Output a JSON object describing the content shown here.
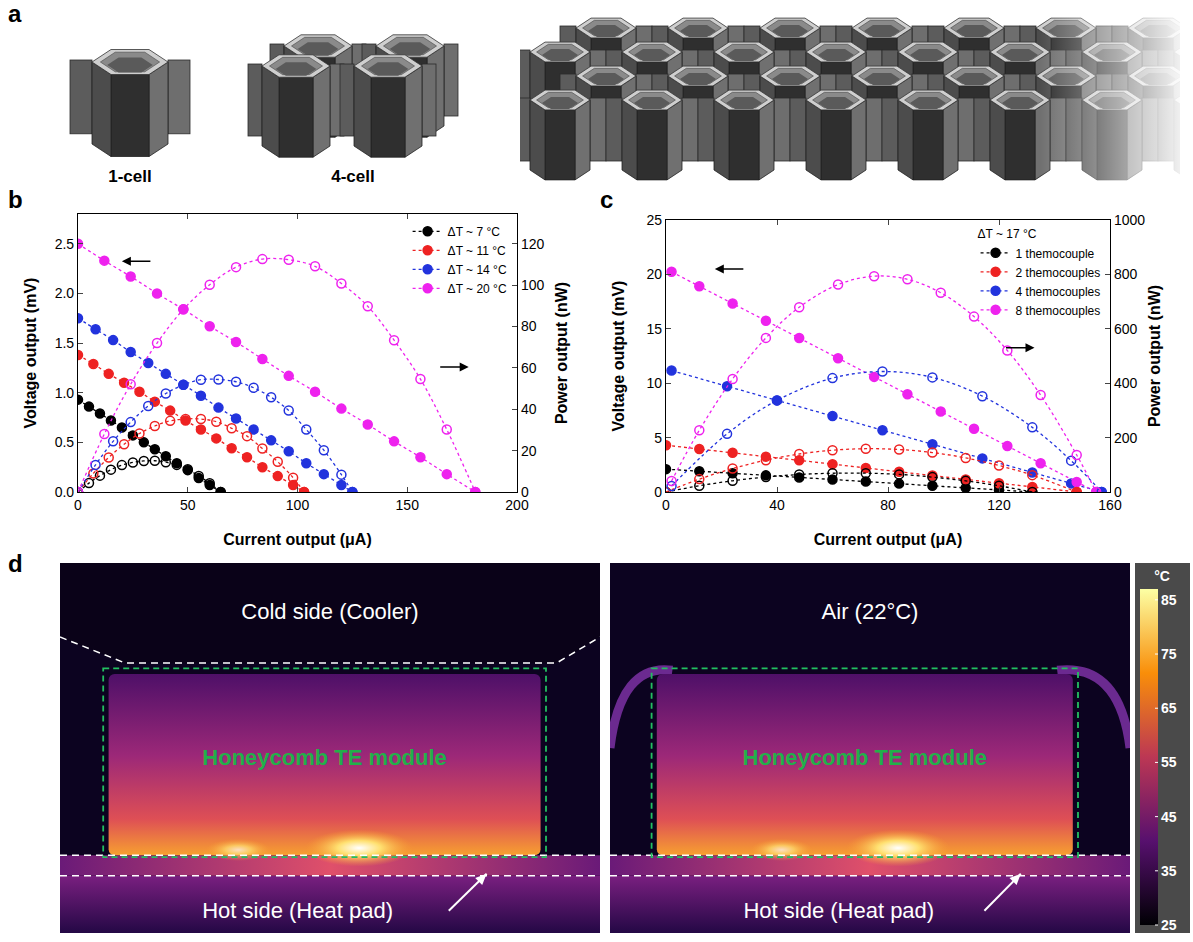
{
  "panel_a": {
    "letter": "a",
    "labels": [
      "1-cell",
      "4-cell"
    ]
  },
  "chart_data": [
    {
      "letter": "b",
      "type": "line",
      "x_label": "Current output (μA)",
      "y_label": "Voltage output (mV)",
      "y2_label": "Power output (nW)",
      "xlim": [
        0,
        200
      ],
      "xticks": [
        0,
        50,
        100,
        150,
        200
      ],
      "ylim": [
        0,
        2.8
      ],
      "yticks": [
        {
          "value": 0,
          "label": "0.0"
        },
        {
          "value": 0.5,
          "label": "0.5"
        },
        {
          "value": 1,
          "label": "1.0"
        },
        {
          "value": 1.5,
          "label": "1.5"
        },
        {
          "value": 2,
          "label": "2.0"
        },
        {
          "value": 2.5,
          "label": "2.5"
        }
      ],
      "y2lim": [
        0,
        134.4
      ],
      "y2ticks": [
        0,
        20,
        40,
        60,
        80,
        100,
        120
      ],
      "grid": false,
      "legend": "top right",
      "series": [
        {
          "name": "ΔT ~ 7 °C",
          "color": "#000000",
          "marker": "filled",
          "line_style": "dotted",
          "x": [
            0,
            5,
            10,
            15,
            20,
            25,
            30,
            35,
            40,
            45,
            50,
            55,
            60,
            65
          ],
          "values": [
            0.93,
            0.86,
            0.79,
            0.72,
            0.65,
            0.57,
            0.5,
            0.43,
            0.36,
            0.29,
            0.22,
            0.14,
            0.07,
            0.0
          ]
        },
        {
          "name": "ΔT ~ 11 °C",
          "color": "#ee2222",
          "marker": "filled",
          "line_style": "dotted",
          "x": [
            0,
            7,
            14,
            21,
            28,
            35,
            42,
            49,
            56,
            63,
            70,
            77,
            84,
            91,
            98,
            103
          ],
          "values": [
            1.38,
            1.29,
            1.19,
            1.1,
            1.01,
            0.91,
            0.82,
            0.72,
            0.63,
            0.54,
            0.44,
            0.35,
            0.25,
            0.16,
            0.07,
            0.0
          ]
        },
        {
          "name": "ΔT ~ 14 °C",
          "color": "#2233dd",
          "marker": "filled",
          "line_style": "dotted",
          "x": [
            0,
            8,
            16,
            24,
            32,
            40,
            48,
            56,
            64,
            72,
            80,
            88,
            96,
            104,
            112,
            120,
            125
          ],
          "values": [
            1.75,
            1.64,
            1.53,
            1.41,
            1.3,
            1.19,
            1.08,
            0.97,
            0.85,
            0.74,
            0.63,
            0.52,
            0.41,
            0.29,
            0.18,
            0.07,
            0.0
          ]
        },
        {
          "name": "ΔT ~ 20 °C",
          "color": "#ee22ee",
          "marker": "filled",
          "line_style": "dotted",
          "x": [
            0,
            12,
            24,
            36,
            48,
            60,
            72,
            84,
            96,
            108,
            120,
            132,
            144,
            156,
            168,
            181
          ],
          "values": [
            2.5,
            2.33,
            2.17,
            2.0,
            1.84,
            1.67,
            1.51,
            1.34,
            1.17,
            1.01,
            0.84,
            0.68,
            0.51,
            0.35,
            0.18,
            0.0
          ]
        },
        {
          "name": "ΔT ~ 7 °C",
          "color": "#000000",
          "marker": "open",
          "line_style": "dotted",
          "axis": "y2",
          "x": [
            0,
            5,
            10,
            15,
            20,
            25,
            30,
            35,
            40,
            45,
            50,
            55,
            60,
            65
          ],
          "values": [
            0,
            4.3,
            7.9,
            10.8,
            13.0,
            14.3,
            15.0,
            15.1,
            14.4,
            13.1,
            11.0,
            7.7,
            4.2,
            0
          ]
        },
        {
          "name": "ΔT ~ 11 °C",
          "color": "#ee2222",
          "marker": "open",
          "line_style": "dotted",
          "axis": "y2",
          "x": [
            0,
            7,
            14,
            21,
            28,
            35,
            42,
            49,
            56,
            63,
            70,
            77,
            84,
            91,
            98,
            103
          ],
          "values": [
            0,
            9.0,
            16.7,
            23.1,
            28.3,
            31.9,
            34.4,
            35.3,
            35.3,
            34.0,
            30.8,
            27.0,
            21.0,
            14.6,
            6.9,
            0
          ]
        },
        {
          "name": "ΔT ~ 14 °C",
          "color": "#2233dd",
          "marker": "open",
          "line_style": "dotted",
          "axis": "y2",
          "x": [
            0,
            8,
            16,
            24,
            32,
            40,
            48,
            56,
            64,
            72,
            80,
            88,
            96,
            104,
            112,
            120,
            125
          ],
          "values": [
            0,
            13.1,
            24.5,
            33.8,
            41.6,
            47.6,
            51.8,
            54.3,
            54.4,
            53.3,
            50.4,
            45.8,
            39.4,
            30.2,
            20.2,
            8.4,
            0
          ]
        },
        {
          "name": "ΔT ~ 20 °C",
          "color": "#ee22ee",
          "marker": "open",
          "line_style": "dotted",
          "axis": "y2",
          "x": [
            0,
            12,
            24,
            36,
            48,
            60,
            72,
            84,
            96,
            108,
            120,
            132,
            144,
            156,
            168,
            181
          ],
          "values": [
            0,
            28.0,
            52.1,
            72.0,
            88.3,
            100.2,
            108.7,
            112.6,
            112.3,
            109.1,
            100.8,
            89.8,
            73.4,
            54.6,
            30.2,
            0
          ]
        }
      ]
    },
    {
      "letter": "c",
      "type": "line",
      "x_label": "Current output (μA)",
      "y_label": "Voltage output (mV)",
      "y2_label": "Power output (nW)",
      "legend_title": "ΔT ~ 17 °C",
      "xlim": [
        0,
        160
      ],
      "xticks": [
        0,
        40,
        80,
        120,
        160
      ],
      "ylim": [
        0,
        25
      ],
      "yticks": [
        0,
        5,
        10,
        15,
        20,
        25
      ],
      "y2lim": [
        0,
        1000
      ],
      "y2ticks": [
        0,
        200,
        400,
        600,
        800,
        1000
      ],
      "grid": false,
      "legend": "top right",
      "series": [
        {
          "name": "1 themocouple",
          "color": "#000000",
          "marker": "filled",
          "line_style": "dotted",
          "x": [
            0,
            12,
            24,
            36,
            48,
            60,
            72,
            84,
            96,
            108,
            120,
            132
          ],
          "values": [
            2.1,
            1.91,
            1.72,
            1.53,
            1.34,
            1.15,
            0.96,
            0.77,
            0.57,
            0.38,
            0.19,
            0.0
          ]
        },
        {
          "name": "2 themocouples",
          "color": "#ee2222",
          "marker": "filled",
          "line_style": "dotted",
          "x": [
            0,
            12,
            24,
            36,
            48,
            60,
            72,
            84,
            96,
            108,
            120,
            132,
            148
          ],
          "values": [
            4.3,
            3.95,
            3.6,
            3.25,
            2.91,
            2.56,
            2.21,
            1.86,
            1.51,
            1.16,
            0.81,
            0.47,
            0.0
          ]
        },
        {
          "name": "4 themocouples",
          "color": "#2233dd",
          "marker": "filled",
          "line_style": "dotted",
          "x": [
            2,
            22,
            40,
            60,
            78,
            96,
            114,
            132,
            146,
            157
          ],
          "values": [
            11.16,
            9.72,
            8.42,
            6.98,
            5.68,
            4.39,
            3.09,
            1.8,
            0.79,
            0.0
          ]
        },
        {
          "name": "8 themocouples",
          "color": "#ee22ee",
          "marker": "filled",
          "line_style": "dotted",
          "x": [
            2,
            12,
            24,
            36,
            48,
            62,
            75,
            87,
            99,
            111,
            123,
            135,
            148,
            155
          ],
          "values": [
            20.24,
            18.91,
            17.32,
            15.74,
            14.15,
            12.3,
            10.58,
            8.99,
            7.4,
            5.81,
            4.23,
            2.64,
            0.92,
            0.0
          ]
        },
        {
          "name": "1 themocouple",
          "color": "#000000",
          "marker": "open",
          "line_style": "dotted",
          "axis": "y2",
          "x": [
            0,
            12,
            24,
            36,
            48,
            60,
            72,
            84,
            96,
            108,
            120,
            132
          ],
          "values": [
            0,
            22.9,
            41.3,
            55.1,
            64.3,
            69.0,
            69.1,
            64.7,
            54.7,
            41.0,
            22.8,
            0
          ]
        },
        {
          "name": "2 themocouples",
          "color": "#ee2222",
          "marker": "open",
          "line_style": "dotted",
          "axis": "y2",
          "x": [
            0,
            12,
            24,
            36,
            48,
            60,
            72,
            84,
            96,
            108,
            120,
            132,
            148
          ],
          "values": [
            0,
            47.4,
            86.4,
            117.0,
            139.7,
            153.6,
            159.1,
            156.2,
            145.0,
            125.3,
            97.2,
            62.0,
            0
          ]
        },
        {
          "name": "4 themocouples",
          "color": "#2233dd",
          "marker": "open",
          "line_style": "dotted",
          "axis": "y2",
          "x": [
            2,
            22,
            40,
            60,
            78,
            96,
            114,
            132,
            146,
            157
          ],
          "values": [
            22.3,
            213.8,
            336.8,
            418.8,
            443.0,
            421.4,
            352.3,
            237.6,
            115.3,
            0
          ]
        },
        {
          "name": "8 themocouples",
          "color": "#ee22ee",
          "marker": "open",
          "line_style": "dotted",
          "axis": "y2",
          "x": [
            2,
            12,
            24,
            36,
            48,
            62,
            75,
            87,
            99,
            111,
            123,
            135,
            148,
            155
          ],
          "values": [
            40.5,
            226.9,
            415.7,
            566.6,
            679.2,
            762.6,
            793.5,
            782.1,
            732.6,
            644.9,
            520.3,
            356.4,
            136.2,
            0
          ]
        }
      ]
    }
  ],
  "panel_d": {
    "letter": "d",
    "images": [
      {
        "top": "Cold side (Cooler)",
        "module": "Honeycomb TE module",
        "bottom": "Hot side (Heat pad)"
      },
      {
        "top": "Air (22°C)",
        "module": "Honeycomb TE module",
        "bottom": "Hot side (Heat pad)"
      }
    ],
    "colorbar": {
      "unit": "°C",
      "range": [
        25,
        87
      ],
      "ticks": [
        25,
        35,
        45,
        55,
        65,
        75,
        85
      ]
    }
  }
}
